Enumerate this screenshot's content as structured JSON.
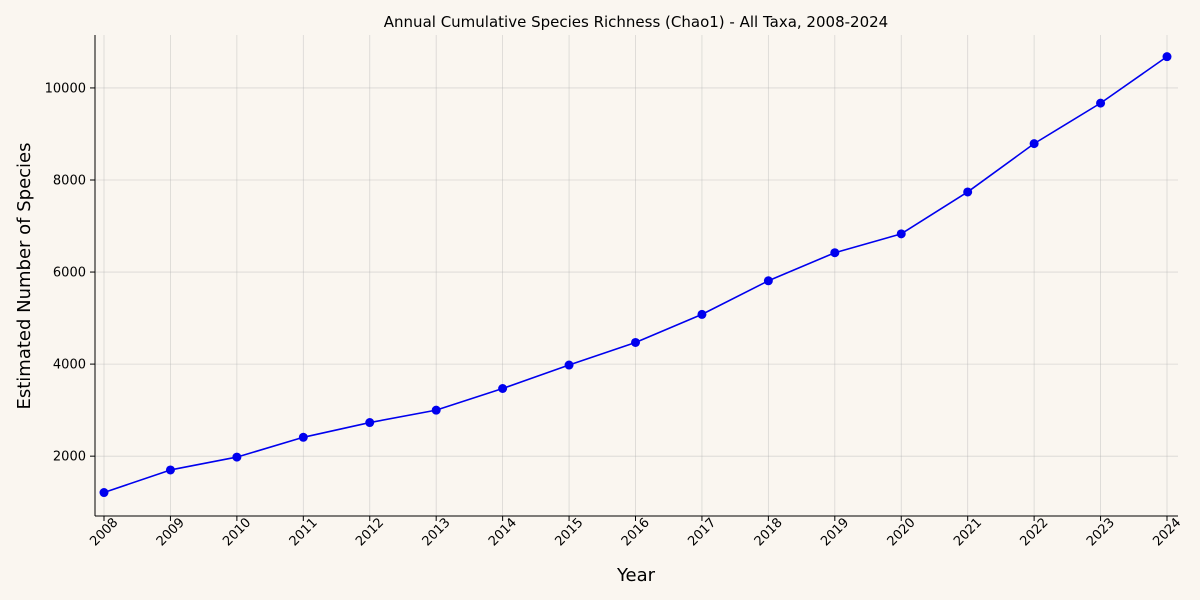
{
  "chart_data": {
    "type": "line",
    "title": "Annual Cumulative Species Richness (Chao1) - All Taxa, 2008-2024",
    "xlabel": "Year",
    "ylabel": "Estimated Number of Species",
    "x": [
      "2008",
      "2009",
      "2010",
      "2011",
      "2012",
      "2013",
      "2014",
      "2015",
      "2016",
      "2017",
      "2018",
      "2019",
      "2020",
      "2021",
      "2022",
      "2023",
      "2024"
    ],
    "series": [
      {
        "color": "#0000ee",
        "values": [
          1210,
          1700,
          1980,
          2410,
          2730,
          3000,
          3470,
          3980,
          4470,
          5080,
          5810,
          6420,
          6830,
          7740,
          8790,
          9670,
          10680
        ]
      }
    ],
    "ylim": [
      700,
      11150
    ],
    "yticks": [
      2000,
      4000,
      6000,
      8000,
      10000
    ],
    "grid": true,
    "background": "#faf6f0"
  }
}
